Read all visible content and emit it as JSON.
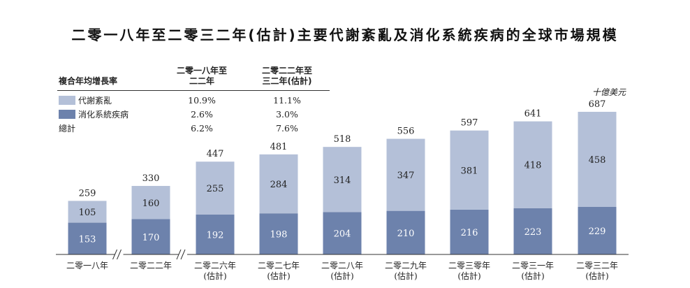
{
  "title": "二零一八年至二零三二年(估計)主要代謝紊亂及消化系統疾病的全球市場規模",
  "unit": "十億美元",
  "colors": {
    "metabolic": "#b4c0d8",
    "digestive": "#6d82ac",
    "axis": "#333333"
  },
  "cagr_table": {
    "header_label": "複合年均增長率",
    "col1": "二零一八年至\n二二年",
    "col2": "二零二二年至\n三二年(估計)",
    "rows": [
      {
        "label": "代謝紊亂",
        "swatch": "metabolic",
        "v1": "10.9%",
        "v2": "11.1%"
      },
      {
        "label": "消化系統疾病",
        "swatch": "digestive",
        "v1": "2.6%",
        "v2": "3.0%"
      },
      {
        "label": "總計",
        "swatch": "",
        "v1": "6.2%",
        "v2": "7.6%"
      }
    ]
  },
  "chart_data": {
    "type": "bar",
    "stacked": true,
    "categories": [
      "二零一八年",
      "二零二二年",
      "二零二六年\n(估計)",
      "二零二七年\n(估計)",
      "二零二八年\n(估計)",
      "二零二九年\n(估計)",
      "二零三零年\n(估計)",
      "二零三一年\n(估計)",
      "二零三二年\n(估計)"
    ],
    "series": [
      {
        "name": "消化系統疾病",
        "color": "digestive",
        "values": [
          153,
          170,
          192,
          198,
          204,
          210,
          216,
          223,
          229
        ]
      },
      {
        "name": "代謝紊亂",
        "color": "metabolic",
        "values": [
          105,
          160,
          255,
          284,
          314,
          347,
          381,
          418,
          458
        ]
      }
    ],
    "totals": [
      259,
      330,
      447,
      481,
      518,
      556,
      597,
      641,
      687
    ],
    "axis_breaks_after": [
      0,
      1
    ],
    "ylim": [
      0,
      700
    ],
    "grid": false
  }
}
